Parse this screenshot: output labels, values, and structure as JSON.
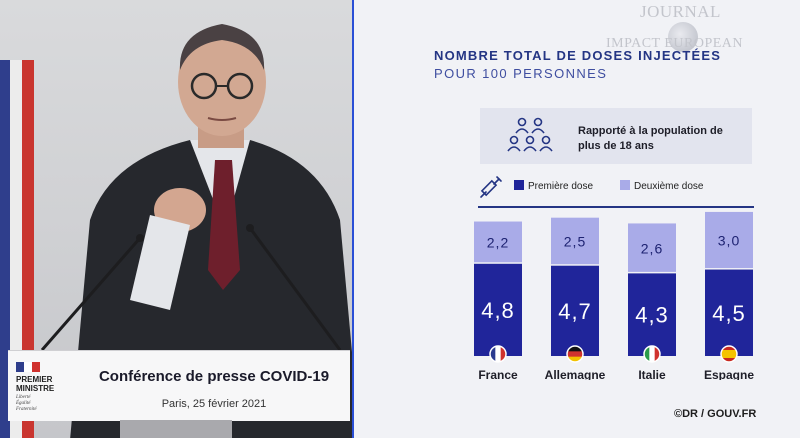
{
  "video": {
    "lectern_org_line1": "PREMIER",
    "lectern_org_line2": "MINISTRE",
    "lectern_motto": [
      "Liberté",
      "Égalité",
      "Fraternité"
    ],
    "lectern_title": "Conférence de presse COVID-19",
    "lectern_date": "Paris, 25 février 2021"
  },
  "watermark": {
    "line1": "JOURNAL",
    "line2": "IMPACT EUROPEAN"
  },
  "infographic": {
    "title": "NOMBRE TOTAL DE DOSES INJECTÉES",
    "subtitle": "POUR 100 PERSONNES",
    "population_note": "Rapporté à la population de plus de 18 ans",
    "icons": {
      "population": "people-group-icon",
      "syringe": "syringe-icon"
    }
  },
  "chart_data": {
    "type": "bar",
    "stacked": true,
    "title": "NOMBRE TOTAL DE DOSES INJECTÉES",
    "subtitle": "POUR 100 PERSONNES",
    "categories": [
      "France",
      "Allemagne",
      "Italie",
      "Espagne"
    ],
    "series": [
      {
        "name": "Première dose",
        "color": "#20259a",
        "values": [
          4.8,
          4.7,
          4.3,
          4.5
        ],
        "labels": [
          "4,8",
          "4,7",
          "4,3",
          "4,5"
        ]
      },
      {
        "name": "Deuxième dose",
        "color": "#a9abe8",
        "values": [
          2.2,
          2.5,
          2.6,
          3.0
        ],
        "labels": [
          "2,2",
          "2,5",
          "2,6",
          "3,0"
        ]
      }
    ],
    "flags": [
      {
        "country": "France",
        "icon": "france-flag-icon",
        "colors": [
          "#2a3a8f",
          "#ffffff",
          "#d0322e"
        ],
        "orientation": "vertical"
      },
      {
        "country": "Allemagne",
        "icon": "germany-flag-icon",
        "colors": [
          "#111111",
          "#d0322e",
          "#f2c200"
        ],
        "orientation": "horizontal"
      },
      {
        "country": "Italie",
        "icon": "italy-flag-icon",
        "colors": [
          "#2a9a4a",
          "#ffffff",
          "#d0322e"
        ],
        "orientation": "vertical"
      },
      {
        "country": "Espagne",
        "icon": "spain-flag-icon",
        "colors": [
          "#c8281f",
          "#f4c300",
          "#c8281f"
        ],
        "orientation": "horizontal"
      }
    ],
    "ylim": [
      0,
      7.6
    ],
    "legend": "top",
    "grid": false
  },
  "credit": "©DR / GOUV.FR",
  "colors": {
    "accent": "#243584",
    "first_dose": "#20259a",
    "second_dose": "#a9abe8",
    "divider": "#2a4fd6"
  }
}
